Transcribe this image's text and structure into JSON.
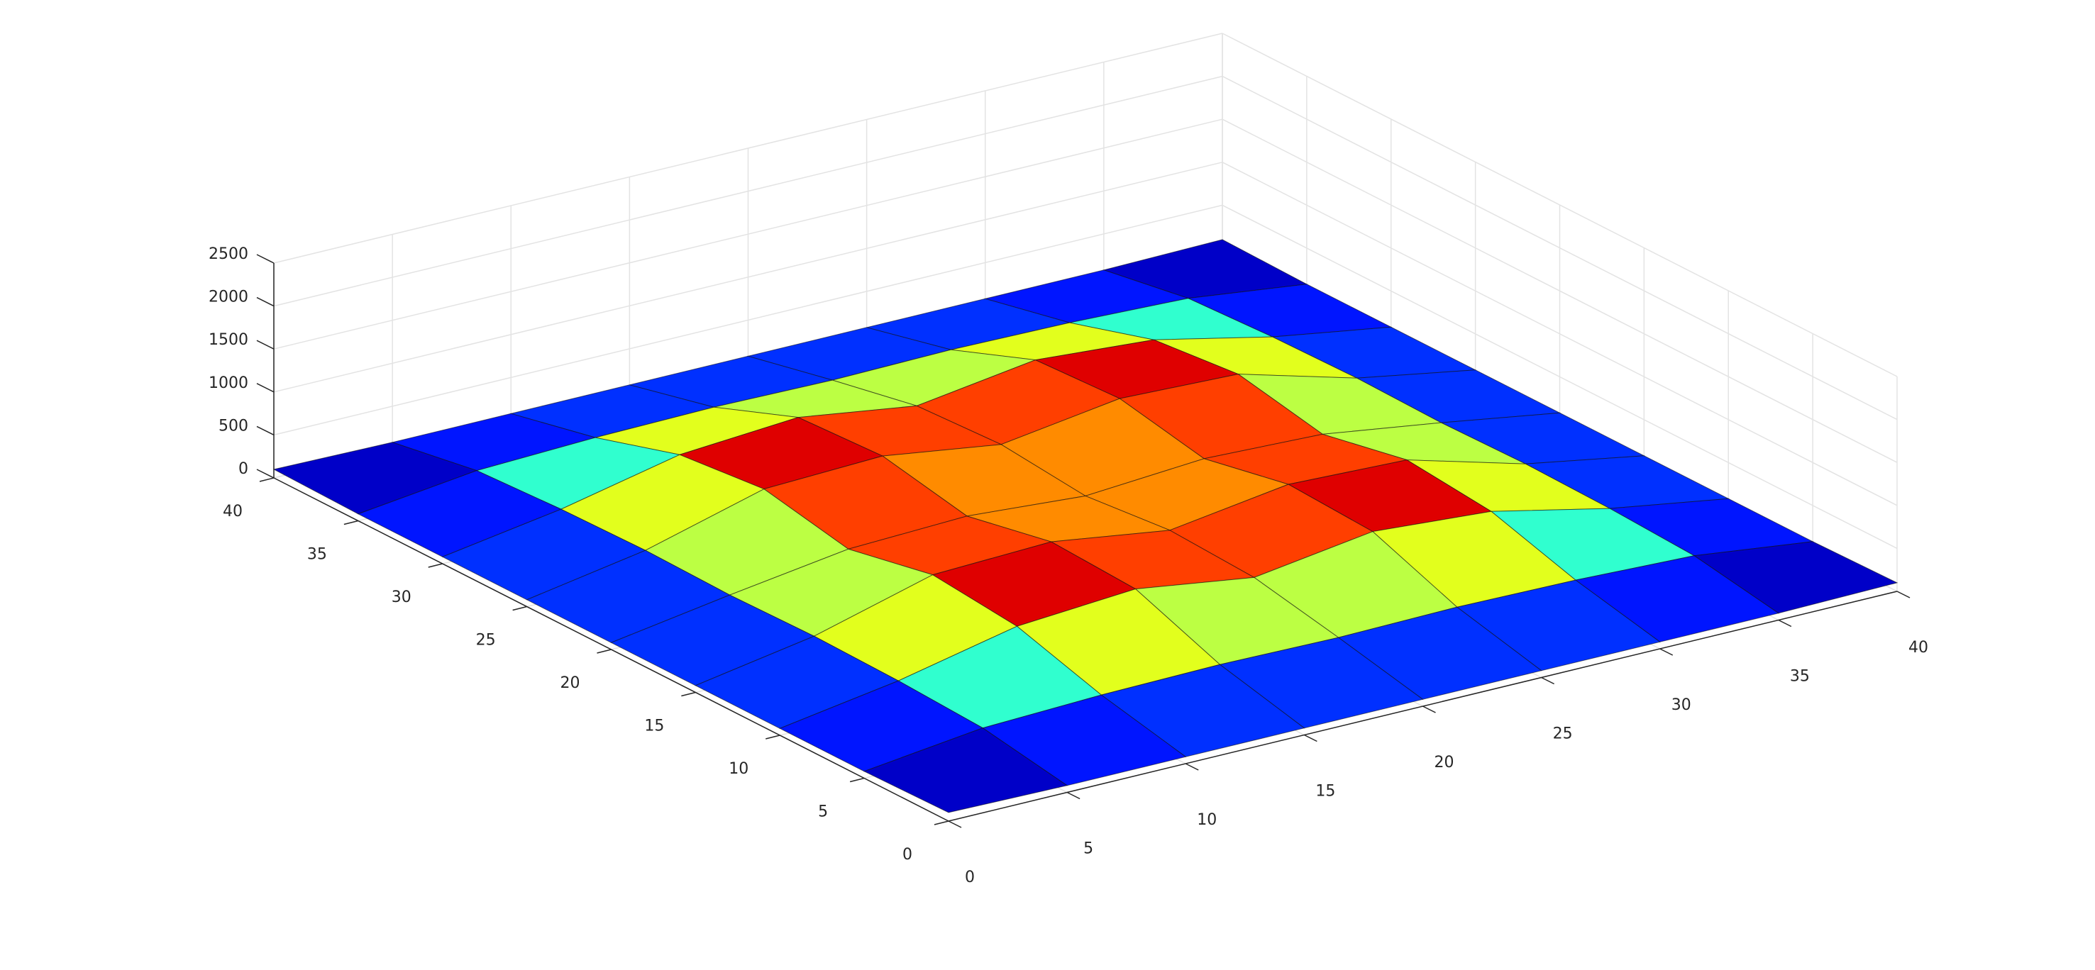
{
  "chart_data": {
    "type": "surface",
    "x": [
      0,
      5,
      10,
      15,
      20,
      25,
      30,
      35,
      40
    ],
    "y": [
      0,
      5,
      10,
      15,
      20,
      25,
      30,
      35,
      40
    ],
    "z": [
      [
        100,
        80,
        80,
        80,
        80,
        80,
        80,
        80,
        100
      ],
      [
        80,
        250,
        300,
        320,
        300,
        320,
        300,
        250,
        80
      ],
      [
        80,
        300,
        600,
        700,
        500,
        700,
        600,
        300,
        80
      ],
      [
        80,
        320,
        700,
        750,
        550,
        750,
        700,
        320,
        80
      ],
      [
        80,
        300,
        500,
        550,
        450,
        550,
        500,
        300,
        80
      ],
      [
        80,
        320,
        700,
        750,
        550,
        750,
        700,
        320,
        80
      ],
      [
        80,
        300,
        600,
        700,
        500,
        700,
        600,
        300,
        80
      ],
      [
        80,
        250,
        300,
        320,
        300,
        320,
        300,
        250,
        80
      ],
      [
        100,
        80,
        80,
        80,
        80,
        80,
        80,
        80,
        100
      ]
    ],
    "xlim": [
      0,
      40
    ],
    "ylim": [
      0,
      40
    ],
    "zlim": [
      0,
      2500
    ],
    "xticks": [
      0,
      5,
      10,
      15,
      20,
      25,
      30,
      35,
      40
    ],
    "yticks": [
      0,
      5,
      10,
      15,
      20,
      25,
      30,
      35,
      40
    ],
    "zticks": [
      0,
      500,
      1000,
      1500,
      2000,
      2500
    ],
    "colormap": "jet",
    "grid": true
  }
}
